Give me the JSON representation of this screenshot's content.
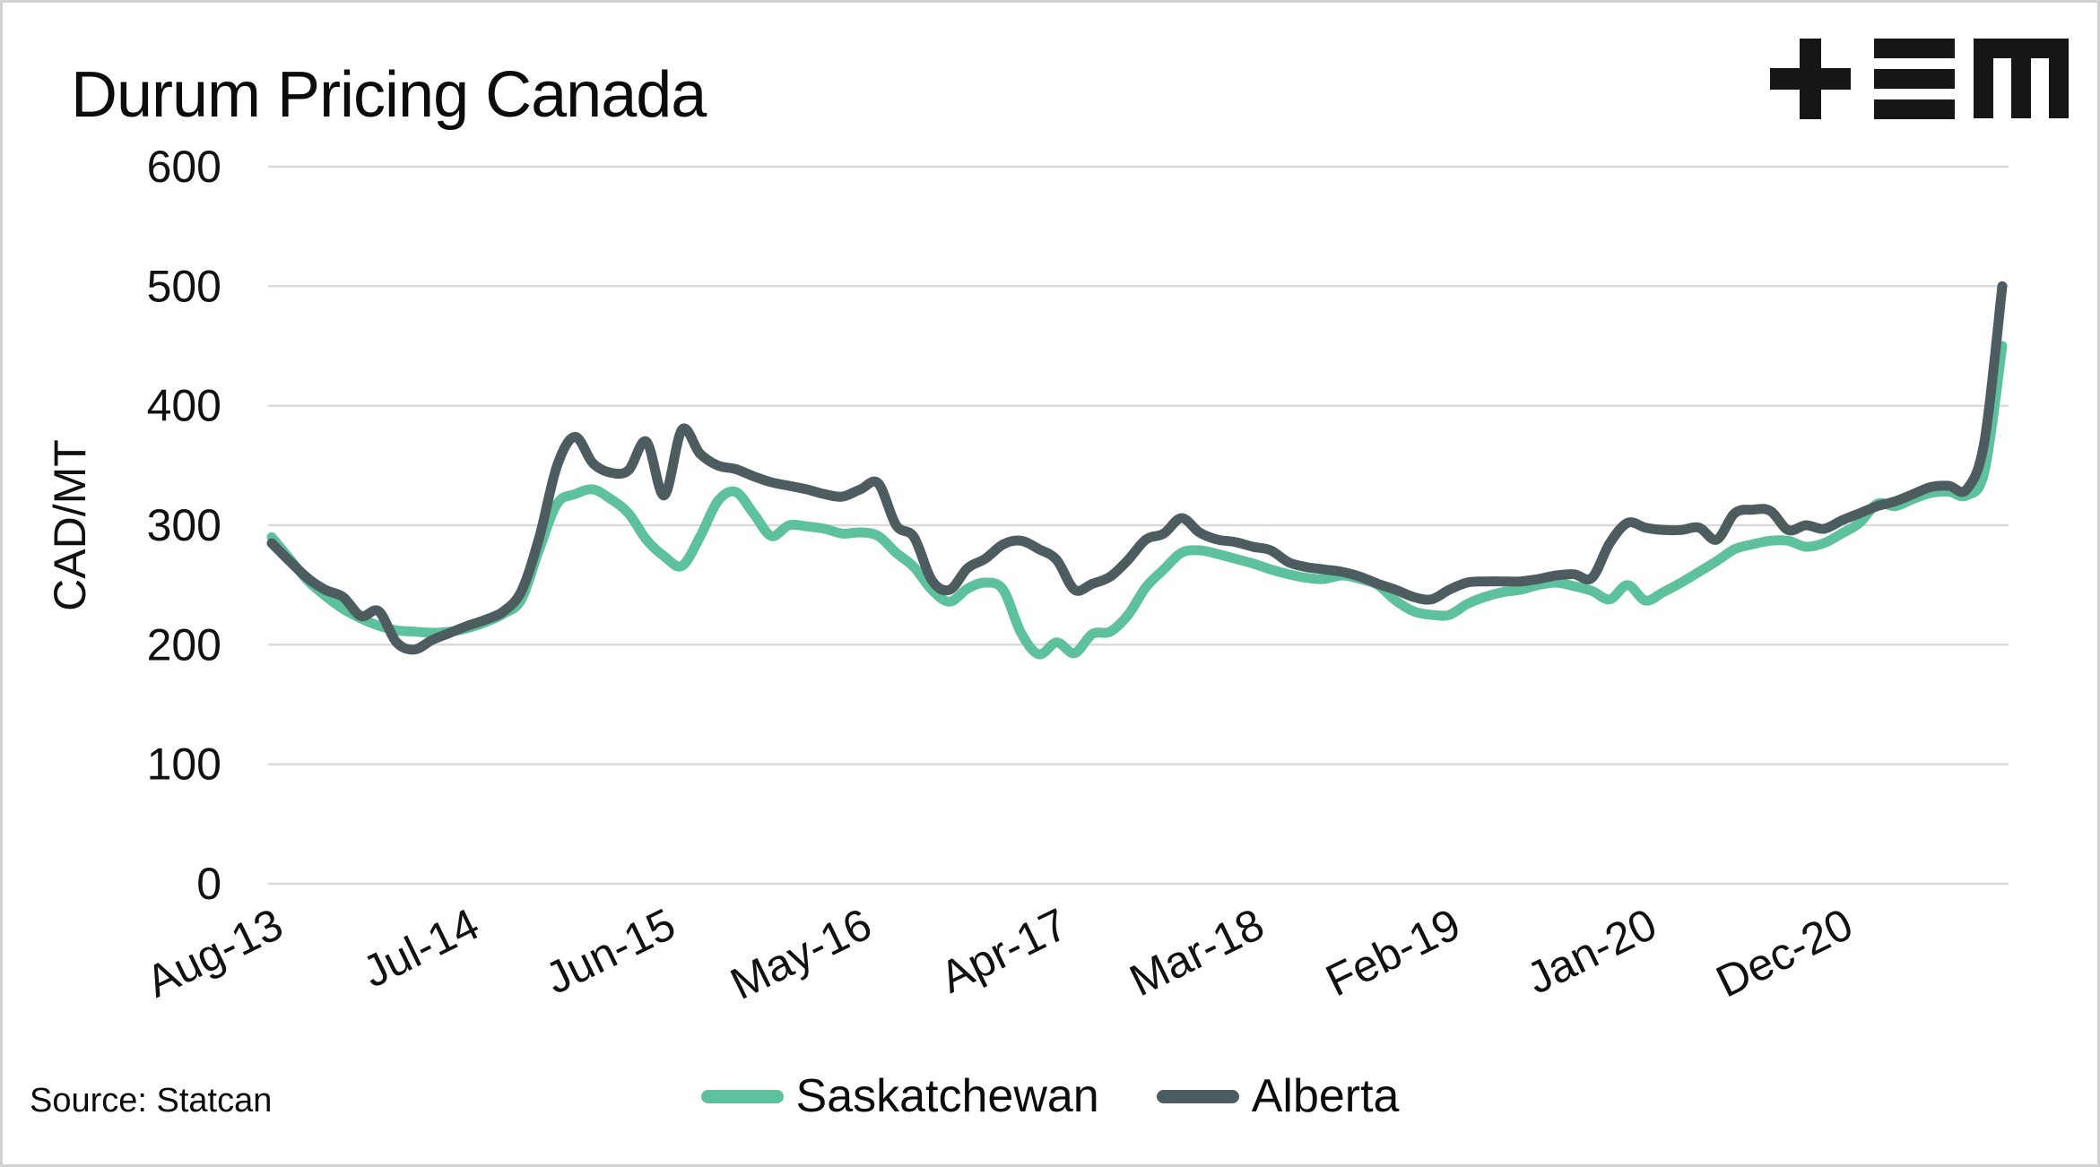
{
  "title": "Durum Pricing Canada",
  "source": "Source: Statcan",
  "logo": "tem-logo",
  "chart_data": {
    "type": "line",
    "title": "Durum Pricing Canada",
    "ylabel": "CAD/MT",
    "ylim": [
      0,
      600
    ],
    "yticks": [
      0,
      100,
      200,
      300,
      400,
      500,
      600
    ],
    "grid": "horizontal-only",
    "grid_color": "#dbdbdb",
    "legend_position": "bottom-center",
    "x_frequency": "monthly",
    "xticks": [
      {
        "label": "Aug-13",
        "month": 0
      },
      {
        "label": "Jul-14",
        "month": 11
      },
      {
        "label": "Jun-15",
        "month": 22
      },
      {
        "label": "May-16",
        "month": 33
      },
      {
        "label": "Apr-17",
        "month": 44
      },
      {
        "label": "Mar-18",
        "month": 55
      },
      {
        "label": "Feb-19",
        "month": 66
      },
      {
        "label": "Jan-20",
        "month": 77
      },
      {
        "label": "Dec-20",
        "month": 88
      }
    ],
    "series": [
      {
        "name": "Saskatchewan",
        "color": "#5CC19C",
        "values": [
          290,
          272,
          254,
          241,
          230,
          222,
          216,
          212,
          211,
          210,
          211,
          214,
          219,
          226,
          238,
          280,
          318,
          326,
          330,
          322,
          310,
          288,
          274,
          266,
          290,
          320,
          328,
          310,
          291,
          300,
          299,
          297,
          293,
          294,
          291,
          277,
          265,
          246,
          236,
          247,
          252,
          246,
          210,
          192,
          202,
          193,
          209,
          211,
          225,
          248,
          263,
          277,
          279,
          276,
          272,
          268,
          263,
          259,
          256,
          255,
          258,
          255,
          250,
          237,
          228,
          225,
          225,
          234,
          240,
          244,
          246,
          250,
          252,
          249,
          245,
          238,
          250,
          237,
          244,
          252,
          261,
          270,
          280,
          284,
          287,
          287,
          282,
          285,
          293,
          302,
          318,
          316,
          322,
          327,
          328,
          325,
          345,
          450
        ]
      },
      {
        "name": "Alberta",
        "color": "#4D5D5F",
        "values": [
          285,
          270,
          256,
          246,
          240,
          224,
          228,
          202,
          196,
          204,
          210,
          216,
          221,
          228,
          245,
          290,
          350,
          374,
          352,
          344,
          346,
          370,
          325,
          380,
          360,
          350,
          347,
          341,
          336,
          333,
          330,
          326,
          324,
          330,
          335,
          300,
          290,
          254,
          246,
          264,
          272,
          284,
          287,
          280,
          271,
          246,
          251,
          257,
          271,
          288,
          293,
          306,
          294,
          288,
          286,
          282,
          279,
          269,
          265,
          263,
          261,
          257,
          251,
          246,
          240,
          238,
          246,
          252,
          253,
          253,
          253,
          255,
          258,
          259,
          256,
          285,
          302,
          298,
          296,
          296,
          298,
          288,
          310,
          313,
          312,
          296,
          300,
          297,
          304,
          310,
          316,
          320,
          326,
          332,
          333,
          330,
          370,
          500
        ]
      }
    ]
  }
}
